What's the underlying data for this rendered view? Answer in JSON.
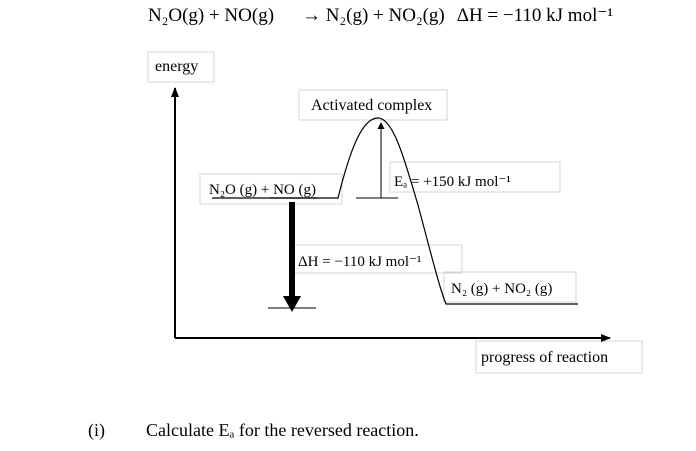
{
  "equation": {
    "reactants": "N₂O(g) + NO(g)",
    "arrow": "→",
    "products": "N₂(g) + NO₂(g)",
    "enthalpy": "ΔH = −110 kJ mol⁻¹"
  },
  "diagram": {
    "y_axis_label": "energy",
    "x_axis_label": "progress of reaction",
    "transition_state_label": "Activated complex",
    "reactants_label": "N₂O (g) + NO (g)",
    "products_label": "N₂ (g) + NO₂ (g)",
    "activation_energy_label": "Eₐ = +150 kJ mol⁻¹",
    "enthalpy_change_label": "ΔH = −110 kJ mol⁻¹"
  },
  "question": {
    "number": "(i)",
    "text": "Calculate Eₐ for the reversed reaction."
  }
}
